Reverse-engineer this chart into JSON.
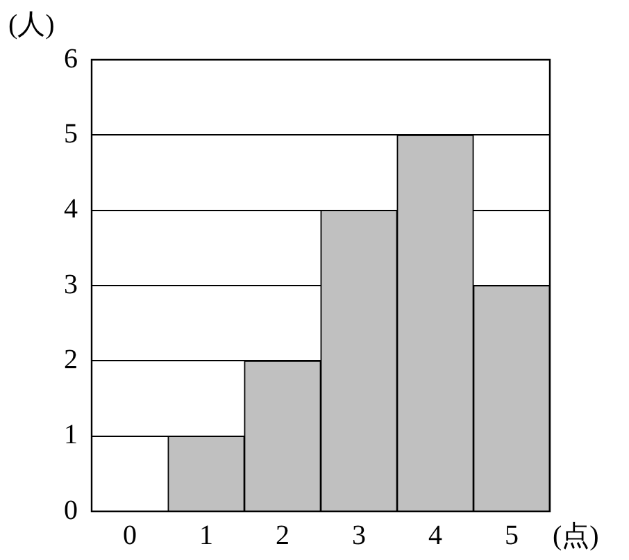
{
  "chart_data": {
    "type": "bar",
    "xlabel": "(点)",
    "ylabel": "(人)",
    "categories": [
      "0",
      "1",
      "2",
      "3",
      "4",
      "5"
    ],
    "values": [
      0,
      1,
      2,
      4,
      5,
      3
    ],
    "color": "#c0c0c0",
    "ylim": [
      0,
      6
    ],
    "yticks": [
      0,
      1,
      2,
      3,
      4,
      5,
      6
    ],
    "grid": "y",
    "legend": false
  }
}
